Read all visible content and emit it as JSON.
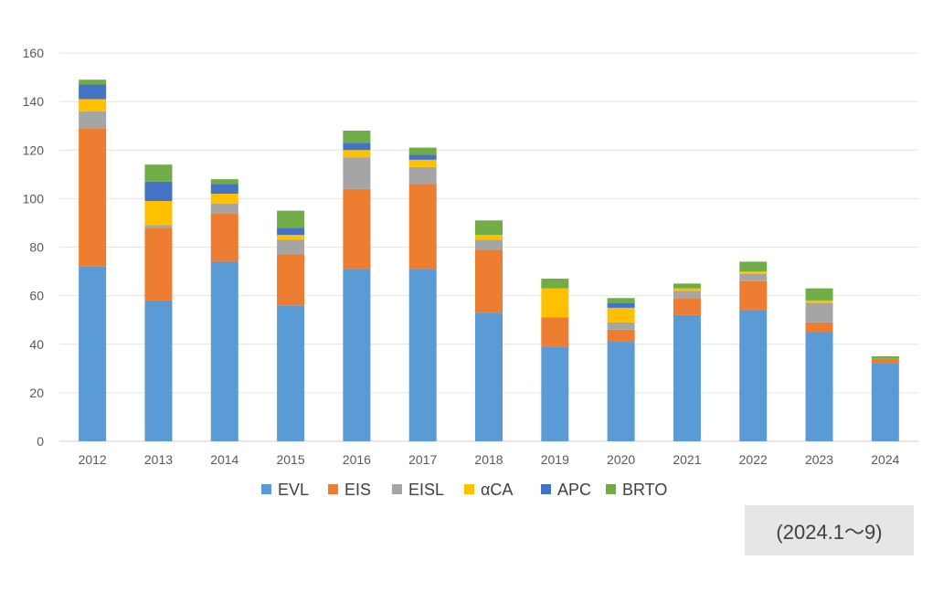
{
  "chart_data": {
    "type": "bar",
    "stacked": true,
    "categories": [
      "2012",
      "2013",
      "2014",
      "2015",
      "2016",
      "2017",
      "2018",
      "2019",
      "2020",
      "2021",
      "2022",
      "2023",
      "2024"
    ],
    "series": [
      {
        "name": "EVL",
        "color": "#5b9bd5",
        "values": [
          72,
          58,
          74,
          56,
          71,
          71,
          53,
          39,
          41,
          52,
          54,
          45,
          32
        ]
      },
      {
        "name": "EIS",
        "color": "#ed7d31",
        "values": [
          57,
          30,
          20,
          21,
          33,
          35,
          26,
          12,
          5,
          7,
          12,
          4,
          2
        ]
      },
      {
        "name": "EISL",
        "color": "#a5a5a5",
        "values": [
          7,
          1,
          4,
          6,
          13,
          7,
          4,
          0,
          3,
          3,
          3,
          8,
          0
        ]
      },
      {
        "name": "αCA",
        "color": "#ffc000",
        "values": [
          5,
          10,
          4,
          2,
          3,
          3,
          2,
          12,
          6,
          1,
          1,
          1,
          0
        ]
      },
      {
        "name": "APC",
        "color": "#4472c4",
        "values": [
          6,
          8,
          4,
          3,
          3,
          2,
          0,
          0,
          2,
          0,
          0,
          0,
          0
        ]
      },
      {
        "name": "BRTO",
        "color": "#70ad47",
        "values": [
          2,
          7,
          2,
          7,
          5,
          3,
          6,
          4,
          2,
          2,
          4,
          5,
          1
        ]
      }
    ],
    "ylim": [
      0,
      160
    ],
    "yticks": [
      0,
      20,
      40,
      60,
      80,
      100,
      120,
      140,
      160
    ],
    "grid": true,
    "legend_position": "bottom"
  },
  "note": "(2024.1～9)"
}
